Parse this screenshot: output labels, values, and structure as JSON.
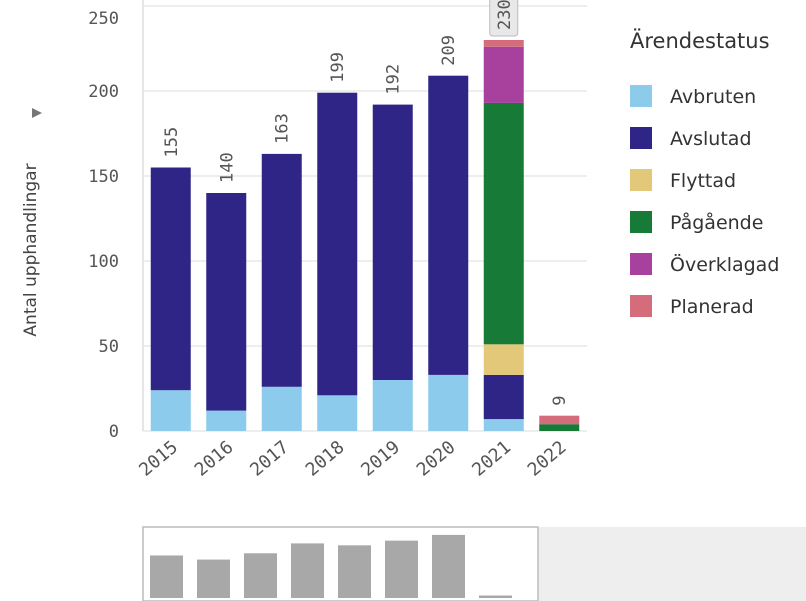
{
  "chart_data": {
    "type": "stacked_bar",
    "y_label": "Antal upphandlingar",
    "legend_title": "Ärendestatus",
    "categories": [
      "2015",
      "2016",
      "2017",
      "2018",
      "2019",
      "2020",
      "2021",
      "2022"
    ],
    "series": [
      {
        "name": "Avbruten",
        "color": "#8ccbec",
        "values": [
          24,
          12,
          26,
          21,
          30,
          33,
          7,
          0
        ]
      },
      {
        "name": "Avslutad",
        "color": "#2e2587",
        "values": [
          131,
          128,
          137,
          178,
          162,
          176,
          26,
          0
        ]
      },
      {
        "name": "Flyttad",
        "color": "#e2c878",
        "values": [
          0,
          0,
          0,
          0,
          0,
          0,
          18,
          0
        ]
      },
      {
        "name": "Pågående",
        "color": "#177a36",
        "values": [
          0,
          0,
          0,
          0,
          0,
          0,
          142,
          4
        ]
      },
      {
        "name": "Överklagad",
        "color": "#a8409e",
        "values": [
          0,
          0,
          0,
          0,
          0,
          0,
          33,
          0
        ]
      },
      {
        "name": "Planerad",
        "color": "#d46c7c",
        "values": [
          0,
          0,
          0,
          0,
          0,
          0,
          4,
          5
        ]
      }
    ],
    "totals": [
      155,
      140,
      163,
      199,
      192,
      209,
      230,
      9
    ],
    "ylim": [
      0,
      250
    ],
    "yticks": [
      0,
      50,
      100,
      150,
      200,
      250
    ],
    "grid": true
  }
}
